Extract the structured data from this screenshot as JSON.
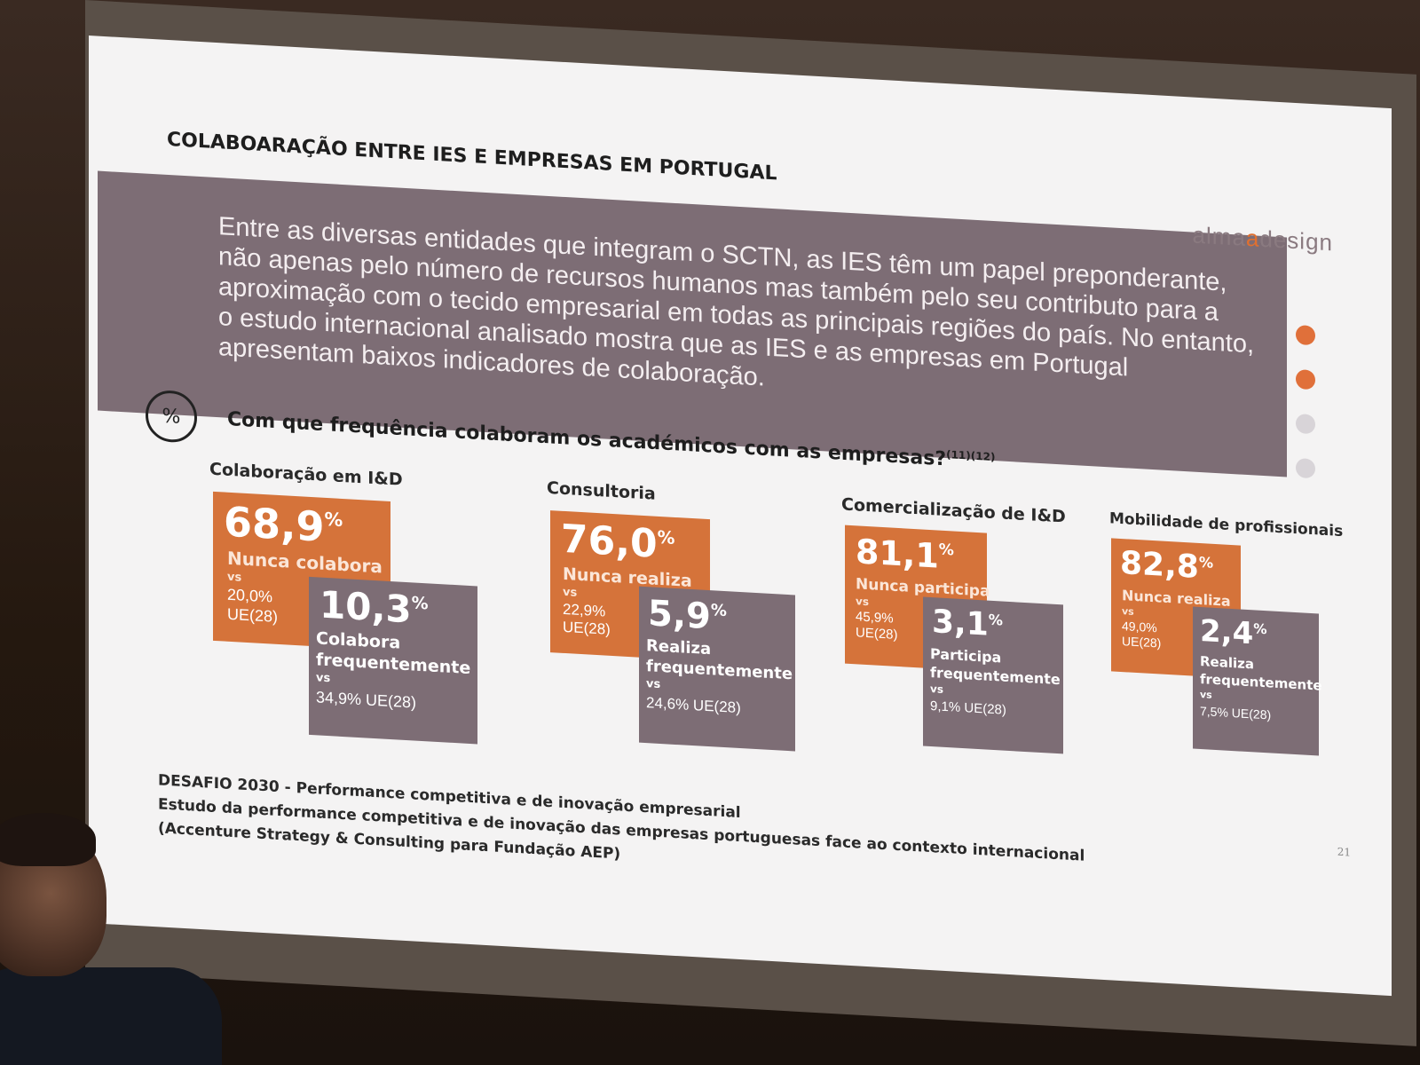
{
  "slide": {
    "title": "COLABOARAÇÃO ENTRE IES E EMPRESAS EM PORTUGAL",
    "logo_left": "alma",
    "logo_accent": "a",
    "logo_right": "design",
    "intro": "Entre as diversas entidades que integram o SCTN, as IES têm um papel preponderante, não apenas pelo número de recursos humanos mas também pelo seu contributo para a aproximação com o tecido empresarial em todas as principais regiões do país. No entanto, o estudo internacional analisado mostra que as IES e as empresas em Portugal apresentam baixos indicadores de colaboração.",
    "question_icon": "%",
    "question": "Com que frequência colaboram os académicos com as empresas?",
    "question_refs": "(11)(12)",
    "page_number": "21"
  },
  "groups": [
    {
      "title": "Colaboração em I&D",
      "never_value": "68,9",
      "never_label": "Nunca colabora",
      "never_vs": "vs",
      "never_eu_value": "20,0%",
      "never_eu_label": "UE(28)",
      "freq_value": "10,3",
      "freq_label1": "Colabora",
      "freq_label2": "frequentemente",
      "freq_vs": "vs",
      "freq_eu": "34,9% UE(28)"
    },
    {
      "title": "Consultoria",
      "never_value": "76,0",
      "never_label": "Nunca realiza",
      "never_vs": "vs",
      "never_eu_value": "22,9%",
      "never_eu_label": "UE(28)",
      "freq_value": "5,9",
      "freq_label1": "Realiza",
      "freq_label2": "frequentemente",
      "freq_vs": "vs",
      "freq_eu": "24,6% UE(28)"
    },
    {
      "title": "Comercialização de I&D",
      "never_value": "81,1",
      "never_label": "Nunca participa",
      "never_vs": "vs",
      "never_eu_value": "45,9%",
      "never_eu_label": "UE(28)",
      "freq_value": "3,1",
      "freq_label1": "Participa",
      "freq_label2": "frequentemente",
      "freq_vs": "vs",
      "freq_eu": "9,1% UE(28)"
    },
    {
      "title": "Mobilidade de profissionais",
      "never_value": "82,8",
      "never_label": "Nunca realiza",
      "never_vs": "vs",
      "never_eu_value": "49,0%",
      "never_eu_label": "UE(28)",
      "freq_value": "2,4",
      "freq_label1": "Realiza",
      "freq_label2": "frequentemente",
      "freq_vs": "vs",
      "freq_eu": "7,5% UE(28)"
    }
  ],
  "percent_sign": "%",
  "source": {
    "line1": "DESAFIO 2030 - Performance competitiva e de inovação empresarial",
    "line2": "Estudo da performance competitiva e de inovação das empresas portuguesas face ao contexto internacional",
    "line3": "(Accenture Strategy & Consulting para Fundação AEP)"
  },
  "colors": {
    "orange": "#d5733a",
    "purple": "#7d6d75",
    "slide_bg": "#f4f3f3"
  }
}
